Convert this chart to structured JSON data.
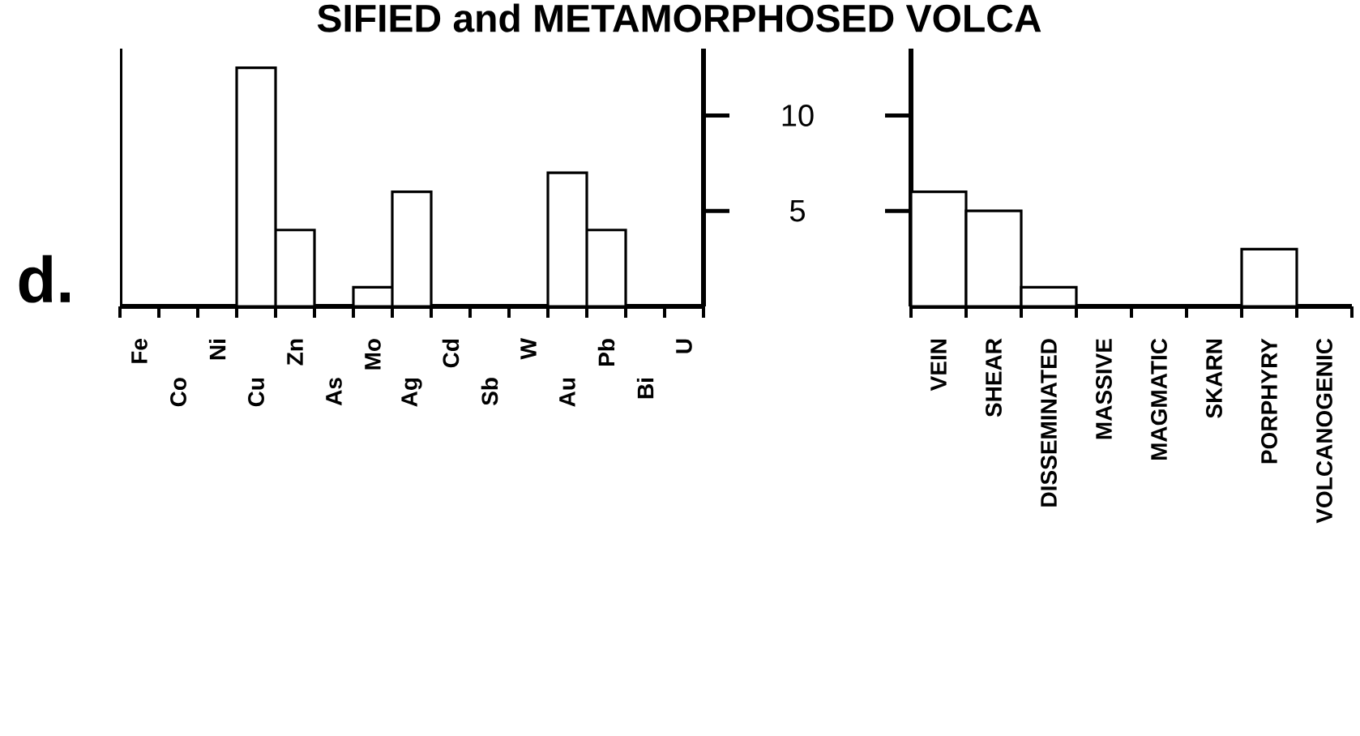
{
  "chart_data": [
    {
      "type": "bar",
      "title": "SIFIED and METAMORPHOSED VOLCA",
      "annotations": [
        "d."
      ],
      "categories": [
        "Fe",
        "Co",
        "Ni",
        "Cu",
        "Zn",
        "As",
        "Mo",
        "Ag",
        "Cd",
        "Sb",
        "W",
        "Au",
        "Pb",
        "Bi",
        "U"
      ],
      "values": [
        0,
        0,
        0,
        12.5,
        4,
        0,
        1,
        6,
        0,
        0,
        0,
        7,
        4,
        0,
        0
      ],
      "color": "#ffffff",
      "ylim": [
        0,
        13.5
      ],
      "yticks": [
        5,
        10
      ]
    },
    {
      "type": "bar",
      "categories": [
        "VEIN",
        "SHEAR",
        "DISSEMINATED",
        "MASSIVE",
        "MAGMATIC",
        "SKARN",
        "PORPHYRY",
        "VOLCANOGENIC"
      ],
      "values": [
        6,
        5,
        1,
        0,
        0,
        0,
        3,
        0
      ],
      "color": "#ffffff",
      "ylim": [
        0,
        13.5
      ],
      "yticks": [
        5,
        10
      ],
      "tick_labels": "x"
    }
  ]
}
